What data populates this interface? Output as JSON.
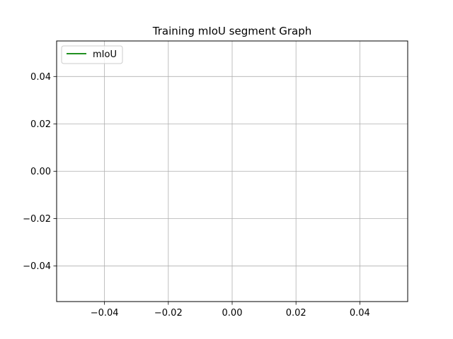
{
  "chart_data": {
    "type": "line",
    "title": "Training mIoU segment Graph",
    "xlabel": "",
    "ylabel": "",
    "xlim": [
      -0.055,
      0.055
    ],
    "ylim": [
      -0.055,
      0.055
    ],
    "xticks": [
      -0.04,
      -0.02,
      0.0,
      0.02,
      0.04
    ],
    "xtick_labels": [
      "−0.04",
      "−0.02",
      "0.00",
      "0.02",
      "0.04"
    ],
    "yticks": [
      0.04,
      0.02,
      0.0,
      -0.02,
      -0.04
    ],
    "ytick_labels": [
      "0.04",
      "0.02",
      "0.00",
      "−0.02",
      "−0.04"
    ],
    "grid": true,
    "legend_position": "top-left",
    "series": [
      {
        "name": "mIoU",
        "color": "#008000",
        "x": [],
        "y": []
      }
    ]
  }
}
